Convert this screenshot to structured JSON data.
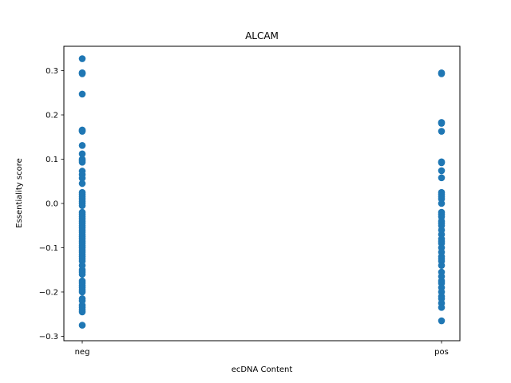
{
  "chart_data": {
    "type": "scatter",
    "title": "ALCAM",
    "xlabel": "ecDNA Content",
    "ylabel": "Essentiality score",
    "categories": [
      "neg",
      "pos"
    ],
    "ylim": [
      -0.31,
      0.355
    ],
    "yticks": [
      -0.3,
      -0.2,
      -0.1,
      0.0,
      0.1,
      0.2,
      0.3
    ],
    "ytick_labels": [
      "−0.3",
      "−0.2",
      "−0.1",
      "0.0",
      "0.1",
      "0.2",
      "0.3"
    ],
    "grid": false,
    "marker_color": "#1f77b4",
    "series": [
      {
        "category": "neg",
        "values": [
          0.327,
          0.295,
          0.295,
          0.293,
          0.247,
          0.166,
          0.164,
          0.163,
          0.131,
          0.112,
          0.1,
          0.097,
          0.093,
          0.073,
          0.065,
          0.057,
          0.045,
          0.025,
          0.02,
          0.015,
          0.01,
          0.005,
          0.0,
          -0.005,
          -0.02,
          -0.025,
          -0.03,
          -0.035,
          -0.04,
          -0.045,
          -0.05,
          -0.055,
          -0.06,
          -0.065,
          -0.07,
          -0.075,
          -0.08,
          -0.085,
          -0.09,
          -0.095,
          -0.1,
          -0.105,
          -0.11,
          -0.115,
          -0.12,
          -0.125,
          -0.13,
          -0.14,
          -0.15,
          -0.155,
          -0.16,
          -0.175,
          -0.18,
          -0.185,
          -0.19,
          -0.195,
          -0.2,
          -0.215,
          -0.22,
          -0.23,
          -0.235,
          -0.24,
          -0.245,
          -0.275
        ]
      },
      {
        "category": "pos",
        "values": [
          0.295,
          0.293,
          0.183,
          0.181,
          0.163,
          0.094,
          0.092,
          0.074,
          0.058,
          0.025,
          0.02,
          0.015,
          0.01,
          0.0,
          -0.02,
          -0.025,
          -0.03,
          -0.04,
          -0.045,
          -0.05,
          -0.06,
          -0.07,
          -0.08,
          -0.085,
          -0.09,
          -0.1,
          -0.11,
          -0.12,
          -0.125,
          -0.13,
          -0.14,
          -0.155,
          -0.165,
          -0.175,
          -0.18,
          -0.19,
          -0.2,
          -0.21,
          -0.215,
          -0.225,
          -0.235,
          -0.265
        ]
      }
    ]
  }
}
